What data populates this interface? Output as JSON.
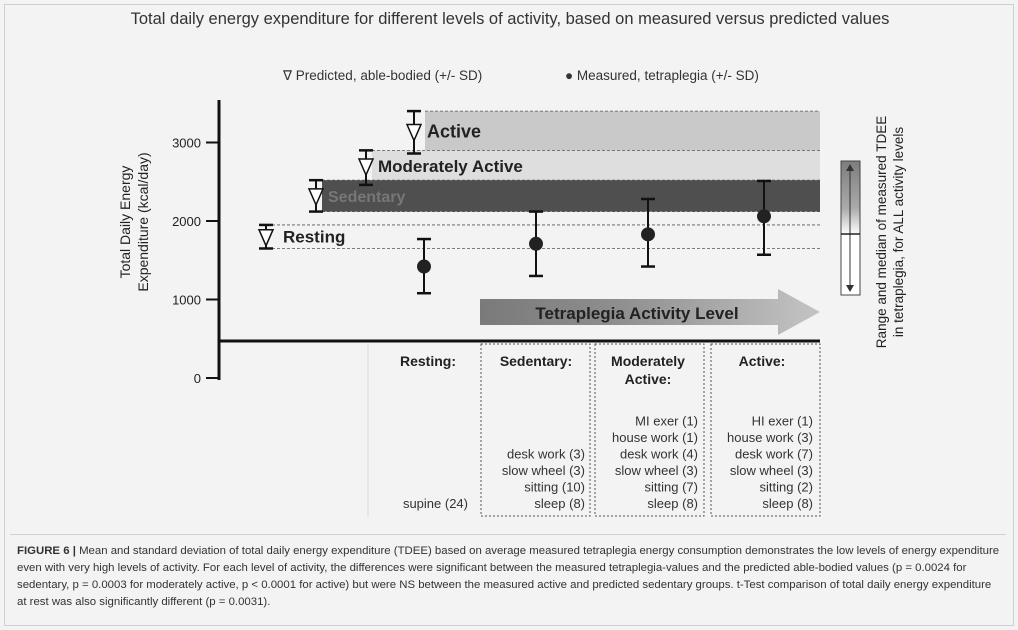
{
  "chart_data": {
    "type": "errorbar",
    "title": "Total daily energy expenditure for different levels of activity, based on measured versus predicted values",
    "ylabel": [
      "Total Daily Energy",
      "Expenditure (kcal/day)"
    ],
    "yticks": [
      0,
      1000,
      2000,
      3000
    ],
    "ylim": [
      0,
      3500
    ],
    "legend": {
      "predicted": "∇ Predicted, able-bodied (+/- SD)",
      "measured": "● Measured, tetraplegia (+/- SD)"
    },
    "predicted_series": [
      {
        "label": "Resting",
        "mean": 1800,
        "low": 1650,
        "high": 1950
      },
      {
        "label": "Sedentary",
        "mean": 2320,
        "low": 2120,
        "high": 2520
      },
      {
        "label": "Moderately Active",
        "mean": 2700,
        "low": 2460,
        "high": 2900
      },
      {
        "label": "Active",
        "mean": 3140,
        "low": 2860,
        "high": 3400
      }
    ],
    "measured_series": [
      {
        "category": "Resting:",
        "mean": 1420,
        "low": 1080,
        "high": 1770
      },
      {
        "category": "Sedentary:",
        "mean": 1710,
        "low": 1300,
        "high": 2120
      },
      {
        "category": "Moderately Active:",
        "mean": 1830,
        "low": 1420,
        "high": 2280
      },
      {
        "category": "Active:",
        "mean": 2060,
        "low": 1570,
        "high": 2510
      }
    ],
    "arrow_label": "Tetraplegia Activity Level",
    "right_label": [
      "Range and median of measured TDEE",
      "in tetraplegia, for ALL activity levels"
    ],
    "categories": [
      {
        "header": [
          "Resting:"
        ],
        "items": [
          "supine (24)"
        ]
      },
      {
        "header": [
          "Sedentary:"
        ],
        "items": [
          "desk work (3)",
          "slow wheel (3)",
          "sitting (10)",
          "sleep (8)"
        ]
      },
      {
        "header": [
          "Moderately",
          "Active:"
        ],
        "items": [
          "MI exer (1)",
          "house work (1)",
          "desk work (4)",
          "slow wheel (3)",
          "sitting (7)",
          "sleep (8)"
        ]
      },
      {
        "header": [
          "Active:"
        ],
        "items": [
          "HI exer (1)",
          "house work (3)",
          "desk work (7)",
          "slow wheel (3)",
          "sitting (2)",
          "sleep (8)"
        ]
      }
    ]
  },
  "caption": {
    "figure_label": "FIGURE 6 |",
    "text": "Mean and standard deviation of total daily energy expenditure (TDEE) based on average measured tetraplegia energy consumption demonstrates the low levels of energy expenditure even with very high levels of activity. For each level of activity, the differences were significant between the measured tetraplegia-values and the predicted able-bodied values (p = 0.0024 for sedentary, p = 0.0003 for moderately active, p < 0.0001 for active) but were NS between the measured active and predicted sedentary groups. t-Test comparison of total daily energy expenditure at rest was also significantly different (p = 0.0031)."
  }
}
